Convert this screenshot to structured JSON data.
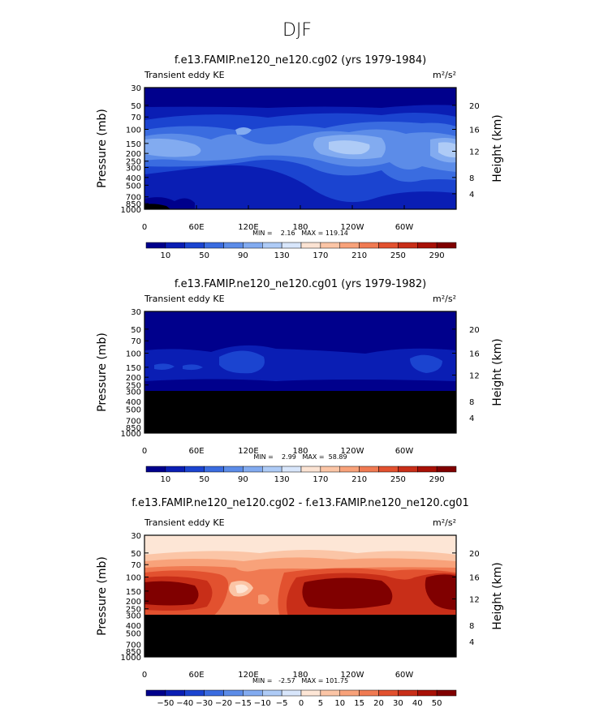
{
  "figure_title": "DJF",
  "chart_data": [
    {
      "type": "heatmap",
      "title": "f.e13.FAMIP.ne120_ne120.cg02 (yrs 1979-1984)",
      "left_label": "Transient eddy KE",
      "units": "m²/s²",
      "ylabel": "Pressure (mb)",
      "ylabel_right": "Height (km)",
      "x_ticks": [
        "0",
        "60E",
        "120E",
        "180",
        "120W",
        "60W"
      ],
      "y_ticks": [
        "30",
        "50",
        "70",
        "100",
        "150",
        "200",
        "250",
        "300",
        "400",
        "500",
        "700",
        "850",
        "1000"
      ],
      "y_ticks_right": [
        "20",
        "16",
        "12",
        "8",
        "4"
      ],
      "stats": "MIN =    2.16   MAX = 119.14",
      "min": 2.16,
      "max": 119.14,
      "colorbar_labels": [
        "10",
        "50",
        "90",
        "130",
        "170",
        "210",
        "250",
        "290"
      ],
      "masked_below_mb": null
    },
    {
      "type": "heatmap",
      "title": "f.e13.FAMIP.ne120_ne120.cg01 (yrs 1979-1982)",
      "left_label": "Transient eddy KE",
      "units": "m²/s²",
      "ylabel": "Pressure (mb)",
      "ylabel_right": "Height (km)",
      "x_ticks": [
        "0",
        "60E",
        "120E",
        "180",
        "120W",
        "60W"
      ],
      "y_ticks": [
        "30",
        "50",
        "70",
        "100",
        "150",
        "200",
        "250",
        "300",
        "400",
        "500",
        "700",
        "850",
        "1000"
      ],
      "y_ticks_right": [
        "20",
        "16",
        "12",
        "8",
        "4"
      ],
      "stats": "MIN =    2.99   MAX =  58.89",
      "min": 2.99,
      "max": 58.89,
      "colorbar_labels": [
        "10",
        "50",
        "90",
        "130",
        "170",
        "210",
        "250",
        "290"
      ],
      "masked_below_mb": 300
    },
    {
      "type": "heatmap",
      "title": "f.e13.FAMIP.ne120_ne120.cg02 - f.e13.FAMIP.ne120_ne120.cg01",
      "left_label": "Transient eddy KE",
      "units": "m²/s²",
      "ylabel": "Pressure (mb)",
      "ylabel_right": "Height (km)",
      "x_ticks": [
        "0",
        "60E",
        "120E",
        "180",
        "120W",
        "60W"
      ],
      "y_ticks": [
        "30",
        "50",
        "70",
        "100",
        "150",
        "200",
        "250",
        "300",
        "400",
        "500",
        "700",
        "850",
        "1000"
      ],
      "y_ticks_right": [
        "20",
        "16",
        "12",
        "8",
        "4"
      ],
      "stats": "MIN =   -2.57   MAX = 101.75",
      "min": -2.57,
      "max": 101.75,
      "colorbar_labels": [
        "−50",
        "−40",
        "−30",
        "−20",
        "−15",
        "−10",
        "−5",
        "0",
        "5",
        "10",
        "15",
        "20",
        "30",
        "40",
        "50"
      ],
      "masked_below_mb": 300
    }
  ],
  "colors": {
    "abs_scale": [
      "#00008c",
      "#0a1eb4",
      "#1b44d0",
      "#3a6ce0",
      "#5c8ce8",
      "#82abf0",
      "#aecbf6",
      "#d8e6fb",
      "#fbe3d3",
      "#fbc5a6",
      "#f8a27a",
      "#f07a52",
      "#e2512f",
      "#c82e18",
      "#a81006",
      "#800000"
    ],
    "diff_scale": [
      "#00008c",
      "#0a1eb4",
      "#1b44d0",
      "#3a6ce0",
      "#5c8ce8",
      "#82abf0",
      "#aecbf6",
      "#d8e6fb",
      "#fde6d6",
      "#fbc5a6",
      "#f8a27a",
      "#f07a52",
      "#e2512f",
      "#c82e18",
      "#a81006",
      "#800000"
    ],
    "mask": "#000000"
  }
}
